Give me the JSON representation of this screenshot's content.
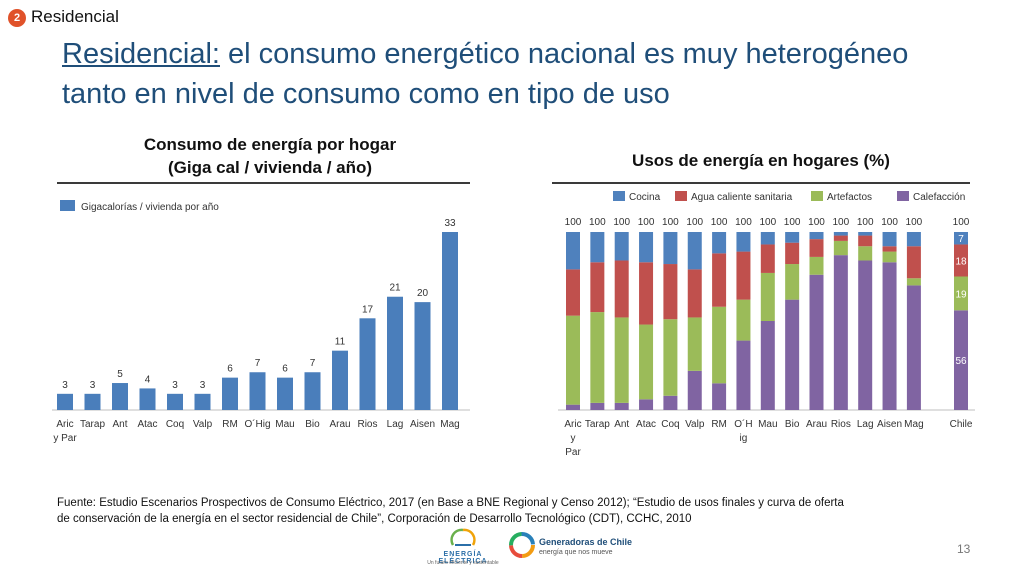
{
  "section": {
    "number": "2",
    "label": "Residencial"
  },
  "title": {
    "underlined": "Residencial:",
    "rest_line1": " el consumo energético nacional es muy heterogéneo",
    "line2": "tanto en nivel de consumo como en tipo de uso"
  },
  "chart_data": [
    {
      "type": "bar",
      "title_line1": "Consumo de energía por hogar",
      "title_line2": "(Giga cal / vivienda / año)",
      "legend": "Gigacalorías / vivienda por año",
      "color": "#4a7ebb",
      "ylim": [
        0,
        33
      ],
      "categories": [
        [
          "Aric",
          "y Par"
        ],
        [
          "Tarap"
        ],
        [
          "Ant"
        ],
        [
          "Atac"
        ],
        [
          "Coq"
        ],
        [
          "Valp"
        ],
        [
          "RM"
        ],
        [
          "O´Hig"
        ],
        [
          "Mau"
        ],
        [
          "Bio"
        ],
        [
          "Arau"
        ],
        [
          "Rios"
        ],
        [
          "Lag"
        ],
        [
          "Aisen"
        ],
        [
          "Mag"
        ]
      ],
      "values": [
        3,
        3,
        5,
        4,
        3,
        3,
        6,
        7,
        6,
        7,
        11,
        17,
        21,
        20,
        33
      ]
    },
    {
      "type": "stacked_bar",
      "title": "Usos de energía en hogares (%)",
      "categories": [
        [
          "Aric",
          "y",
          "Par"
        ],
        [
          "Tarap"
        ],
        [
          "Ant"
        ],
        [
          "Atac"
        ],
        [
          "Coq"
        ],
        [
          "Valp"
        ],
        [
          "RM"
        ],
        [
          "O´H",
          "ig"
        ],
        [
          "Mau"
        ],
        [
          "Bio"
        ],
        [
          "Arau"
        ],
        [
          "Rios"
        ],
        [
          "Lag"
        ],
        [
          "Aisen"
        ],
        [
          "Mag"
        ],
        [
          "Chile"
        ]
      ],
      "totals": [
        "100",
        "100",
        "100",
        "100",
        "100",
        "100",
        "100",
        "100",
        "100",
        "100",
        "100",
        "100",
        "100",
        "100",
        "100",
        "100"
      ],
      "series": [
        {
          "name": "Calefacción",
          "color": "#8064a2",
          "values": [
            3,
            4,
            4,
            6,
            8,
            22,
            15,
            39,
            50,
            62,
            76,
            87,
            84,
            83,
            70,
            56
          ]
        },
        {
          "name": "Artefactos",
          "color": "#9bbb59",
          "values": [
            50,
            51,
            48,
            42,
            43,
            30,
            43,
            23,
            27,
            20,
            10,
            8,
            8,
            6,
            4,
            19
          ]
        },
        {
          "name": "Agua caliente sanitaria",
          "color": "#c0504d",
          "values": [
            26,
            28,
            32,
            35,
            31,
            27,
            30,
            27,
            16,
            12,
            10,
            3,
            6,
            3,
            18,
            18
          ]
        },
        {
          "name": "Cocina",
          "color": "#4f81bd",
          "values": [
            21,
            17,
            16,
            17,
            18,
            21,
            12,
            11,
            7,
            6,
            4,
            2,
            2,
            8,
            8,
            7
          ]
        }
      ],
      "legend_order": [
        "Cocina",
        "Agua caliente sanitaria",
        "Artefactos",
        "Calefacción"
      ],
      "labeled_column": "Chile",
      "segment_labels": {
        "Cocina": "7",
        "Agua caliente sanitaria": "18",
        "Artefactos": "19",
        "Calefacción": "56"
      }
    }
  ],
  "source_text": "Fuente: Estudio Escenarios Prospectivos de Consumo Eléctrico, 2017 (en Base a BNE Regional  y Censo 2012); “Estudio de usos finales y curva de oferta de conservación de la energía en el sector residencial de Chile”, Corporación de Desarrollo Tecnológico (CDT), CCHC, 2010",
  "logos": {
    "energia": {
      "name": "ENERGÍA ELÉCTRICA",
      "tagline": "Un futuro eficiente y sustentable"
    },
    "generadoras": {
      "name": "Generadoras de Chile",
      "tagline": "energía que nos mueve"
    }
  },
  "page_number": "13"
}
